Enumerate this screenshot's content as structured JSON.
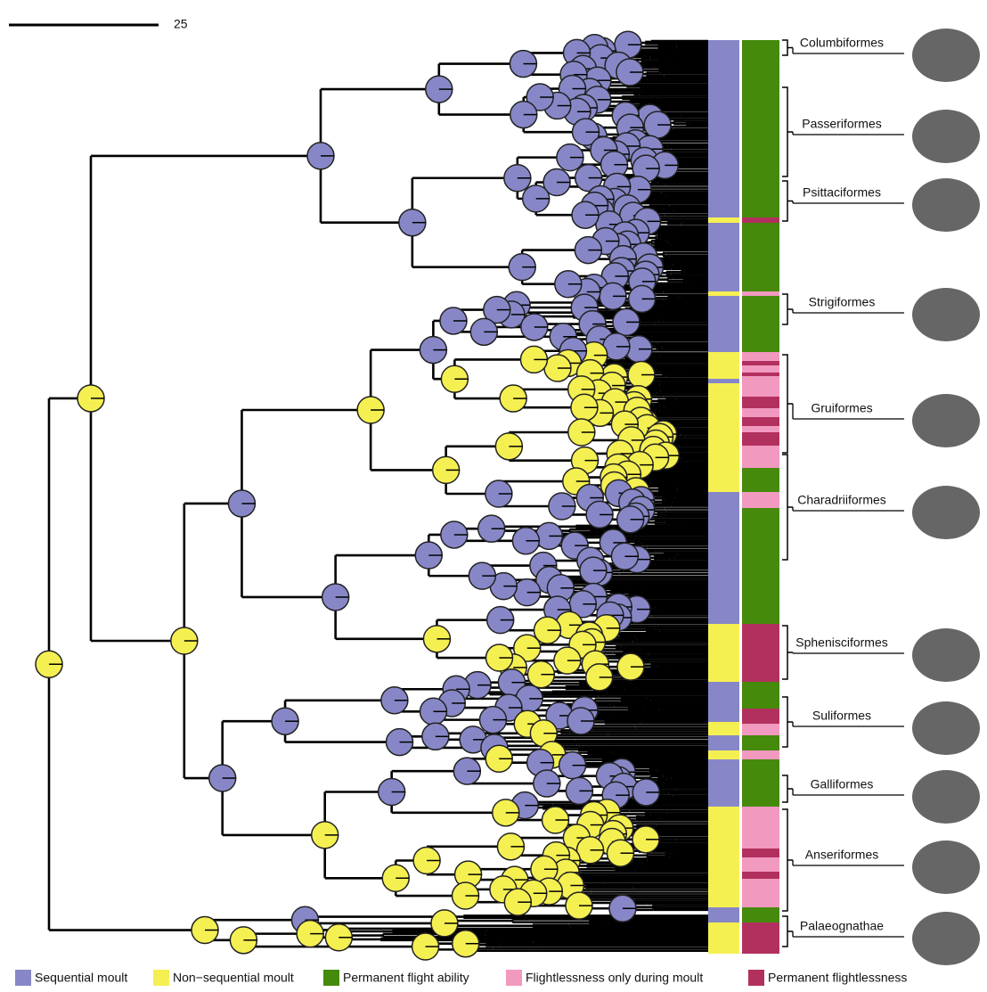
{
  "scale_bar": {
    "label": "25"
  },
  "clades": [
    {
      "label": "Columbiformes"
    },
    {
      "label": "Passeriformes"
    },
    {
      "label": "Psittaciformes"
    },
    {
      "label": "Strigiformes"
    },
    {
      "label": "Gruiformes"
    },
    {
      "label": "Charadriiformes"
    },
    {
      "label": "Sphenisciformes"
    },
    {
      "label": "Suliformes"
    },
    {
      "label": "Galliformes"
    },
    {
      "label": "Anseriformes"
    },
    {
      "label": "Palaeognathae"
    }
  ],
  "legend": [
    {
      "label": "Sequential moult",
      "color": "#8787c8"
    },
    {
      "label": "Non−sequential moult",
      "color": "#f5f052"
    },
    {
      "label": "Permanent flight ability",
      "color": "#458a0b"
    },
    {
      "label": "Flightlessness only during moult",
      "color": "#f299c0"
    },
    {
      "label": "Permanent flightlessness",
      "color": "#b2305e"
    }
  ]
}
